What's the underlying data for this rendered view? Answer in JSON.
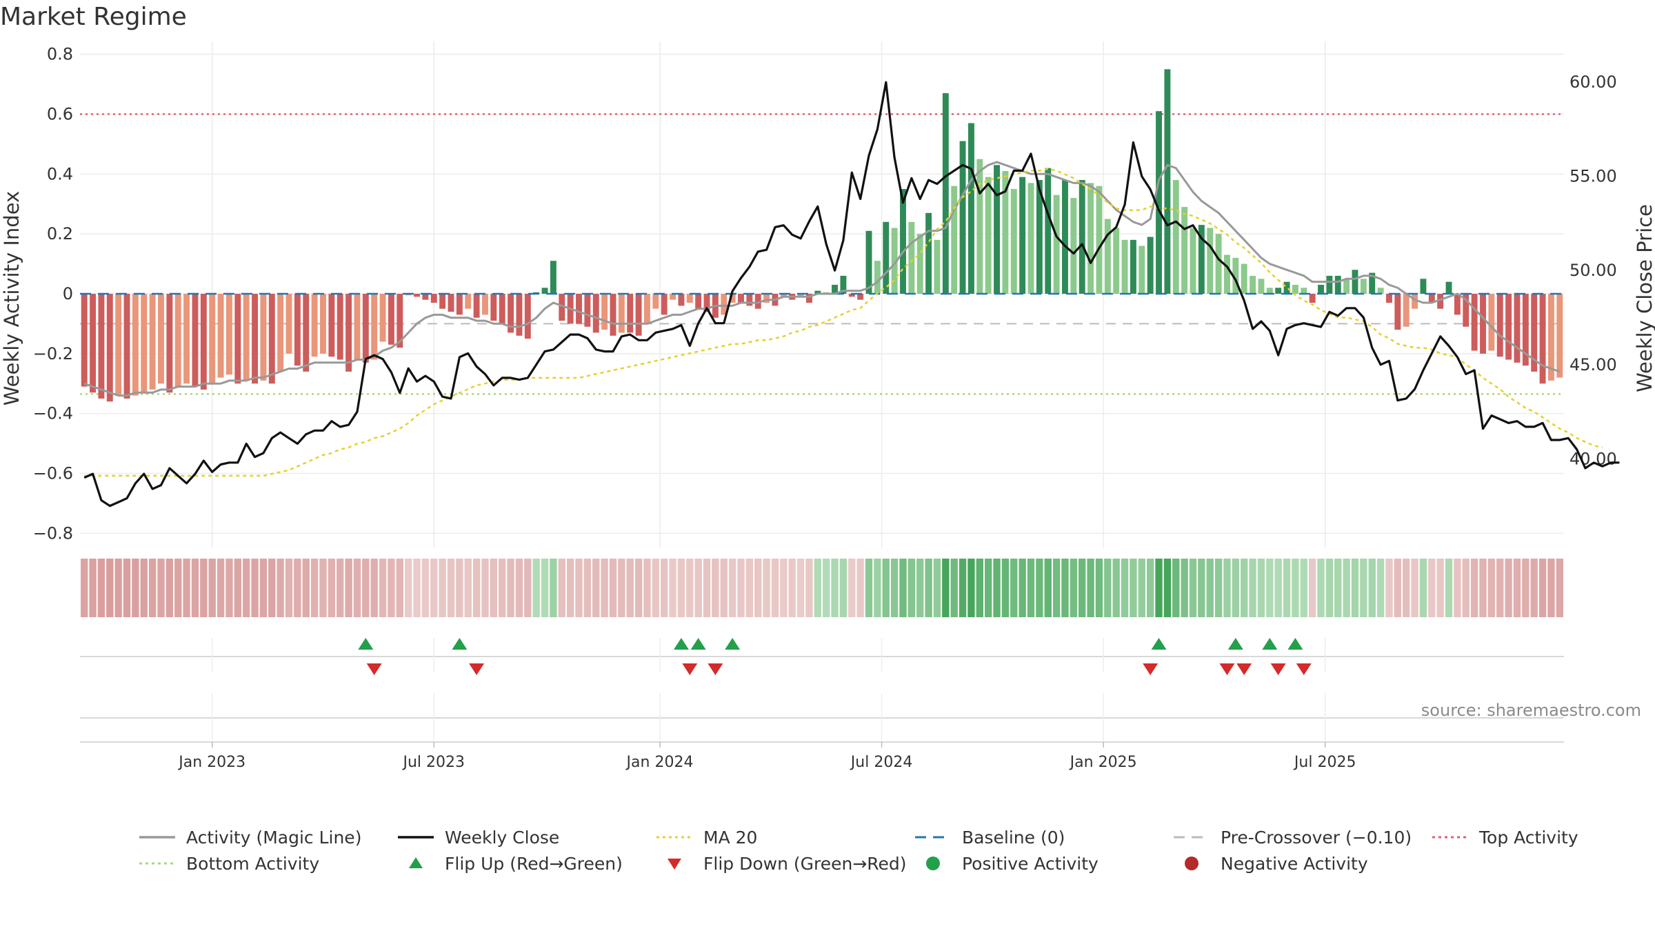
{
  "title": "Market Regime",
  "source": "source: sharemaestro.com",
  "colors": {
    "pos_dark": "#2e8b57",
    "pos_light": "#8cc98c",
    "neg_dark": "#cd5c5c",
    "neg_light": "#e9967a",
    "close": "#111111",
    "activity_line": "#999999",
    "ma20": "#e6d02c",
    "baseline": "#1f77b4",
    "precross": "#bbbbbb",
    "top": "#e06070",
    "bottom": "#a8d87a",
    "flip_up": "#22a04a",
    "flip_down": "#d42a2a"
  },
  "chart_data": {
    "type": "bar",
    "start_date": "2022-09-19",
    "interval_days": 7,
    "activity": [
      -0.31,
      -0.33,
      -0.35,
      -0.36,
      -0.34,
      -0.35,
      -0.34,
      -0.33,
      -0.32,
      -0.3,
      -0.33,
      -0.31,
      -0.3,
      -0.31,
      -0.32,
      -0.3,
      -0.28,
      -0.27,
      -0.3,
      -0.29,
      -0.3,
      -0.29,
      -0.3,
      -0.26,
      -0.2,
      -0.24,
      -0.26,
      -0.21,
      -0.2,
      -0.21,
      -0.22,
      -0.26,
      -0.22,
      -0.23,
      -0.22,
      -0.16,
      -0.17,
      -0.18,
      -0.005,
      -0.01,
      -0.02,
      -0.03,
      -0.05,
      -0.06,
      -0.07,
      -0.05,
      -0.08,
      -0.07,
      -0.09,
      -0.1,
      -0.13,
      -0.14,
      -0.15,
      0.005,
      0.02,
      0.11,
      -0.09,
      -0.1,
      -0.1,
      -0.11,
      -0.13,
      -0.12,
      -0.14,
      -0.13,
      -0.13,
      -0.14,
      -0.1,
      -0.05,
      -0.07,
      -0.02,
      -0.04,
      -0.03,
      -0.05,
      -0.06,
      -0.08,
      -0.07,
      -0.03,
      -0.03,
      -0.04,
      -0.05,
      -0.03,
      -0.04,
      -0.01,
      -0.02,
      -0.01,
      -0.03,
      0.01,
      0.005,
      0.03,
      0.06,
      -0.01,
      -0.02,
      0.21,
      0.11,
      0.24,
      0.22,
      0.35,
      0.24,
      0.2,
      0.27,
      0.18,
      0.67,
      0.36,
      0.51,
      0.57,
      0.45,
      0.39,
      0.43,
      0.41,
      0.35,
      0.39,
      0.37,
      0.38,
      0.42,
      0.33,
      0.38,
      0.32,
      0.38,
      0.37,
      0.36,
      0.25,
      0.22,
      0.18,
      0.18,
      0.16,
      0.19,
      0.61,
      0.75,
      0.38,
      0.29,
      0.22,
      0.23,
      0.22,
      0.2,
      0.13,
      0.12,
      0.1,
      0.06,
      0.05,
      0.02,
      0.02,
      0.04,
      0.03,
      0.02,
      -0.03,
      0.03,
      0.06,
      0.06,
      0.05,
      0.08,
      0.05,
      0.07,
      0.02,
      -0.03,
      -0.12,
      -0.11,
      -0.05,
      0.05,
      -0.03,
      -0.05,
      0.04,
      -0.07,
      -0.11,
      -0.19,
      -0.2,
      -0.19,
      -0.21,
      -0.22,
      -0.23,
      -0.24,
      -0.26,
      -0.3,
      -0.29,
      -0.28
    ],
    "activity_magic_line": [
      -0.3,
      -0.31,
      -0.32,
      -0.33,
      -0.34,
      -0.34,
      -0.33,
      -0.33,
      -0.33,
      -0.32,
      -0.32,
      -0.31,
      -0.31,
      -0.31,
      -0.3,
      -0.3,
      -0.3,
      -0.29,
      -0.29,
      -0.29,
      -0.28,
      -0.28,
      -0.27,
      -0.26,
      -0.25,
      -0.25,
      -0.24,
      -0.23,
      -0.23,
      -0.23,
      -0.23,
      -0.23,
      -0.22,
      -0.22,
      -0.21,
      -0.19,
      -0.18,
      -0.16,
      -0.13,
      -0.1,
      -0.08,
      -0.07,
      -0.07,
      -0.08,
      -0.08,
      -0.08,
      -0.09,
      -0.09,
      -0.1,
      -0.1,
      -0.11,
      -0.11,
      -0.1,
      -0.08,
      -0.05,
      -0.03,
      -0.04,
      -0.05,
      -0.06,
      -0.07,
      -0.08,
      -0.09,
      -0.1,
      -0.1,
      -0.1,
      -0.1,
      -0.1,
      -0.09,
      -0.08,
      -0.07,
      -0.07,
      -0.06,
      -0.05,
      -0.05,
      -0.04,
      -0.04,
      -0.04,
      -0.03,
      -0.03,
      -0.03,
      -0.02,
      -0.02,
      -0.01,
      -0.01,
      -0.01,
      -0.01,
      0.0,
      0.0,
      0.0,
      0.01,
      0.01,
      0.01,
      0.02,
      0.04,
      0.07,
      0.1,
      0.14,
      0.17,
      0.19,
      0.21,
      0.21,
      0.22,
      0.28,
      0.33,
      0.38,
      0.41,
      0.43,
      0.44,
      0.43,
      0.42,
      0.41,
      0.4,
      0.4,
      0.4,
      0.39,
      0.38,
      0.37,
      0.37,
      0.36,
      0.34,
      0.31,
      0.28,
      0.26,
      0.24,
      0.23,
      0.25,
      0.38,
      0.43,
      0.42,
      0.38,
      0.34,
      0.31,
      0.29,
      0.27,
      0.24,
      0.21,
      0.18,
      0.15,
      0.12,
      0.1,
      0.09,
      0.08,
      0.07,
      0.06,
      0.04,
      0.04,
      0.04,
      0.04,
      0.05,
      0.05,
      0.06,
      0.06,
      0.05,
      0.03,
      0.02,
      0.0,
      -0.02,
      -0.03,
      -0.03,
      -0.02,
      -0.01,
      0.0,
      -0.02,
      -0.05,
      -0.08,
      -0.11,
      -0.14,
      -0.16,
      -0.18,
      -0.2,
      -0.22,
      -0.24,
      -0.25,
      -0.26
    ],
    "weekly_close": [
      39.0,
      39.2,
      37.8,
      37.5,
      37.7,
      37.9,
      38.7,
      39.2,
      38.4,
      38.6,
      39.5,
      39.1,
      38.7,
      39.2,
      39.9,
      39.3,
      39.7,
      39.8,
      39.8,
      40.8,
      40.1,
      40.3,
      41.1,
      41.4,
      41.1,
      40.8,
      41.3,
      41.5,
      41.5,
      42.0,
      41.7,
      41.8,
      42.5,
      45.3,
      45.5,
      45.3,
      44.6,
      43.5,
      44.8,
      44.1,
      44.4,
      44.1,
      43.3,
      43.2,
      45.4,
      45.6,
      44.9,
      44.5,
      43.9,
      44.3,
      44.3,
      44.2,
      44.3,
      45.0,
      45.7,
      45.8,
      46.2,
      46.6,
      46.6,
      46.4,
      45.8,
      45.7,
      45.7,
      46.5,
      46.6,
      46.3,
      46.3,
      46.7,
      46.8,
      46.9,
      47.1,
      46.0,
      47.2,
      48.0,
      47.2,
      47.2,
      48.9,
      49.6,
      50.2,
      51.0,
      51.1,
      52.3,
      52.4,
      51.9,
      51.7,
      52.6,
      53.4,
      51.4,
      50.0,
      51.6,
      55.2,
      53.8,
      56.1,
      57.5,
      60.0,
      56.0,
      53.6,
      54.9,
      53.8,
      54.8,
      54.6,
      55.0,
      55.3,
      55.6,
      55.4,
      54.1,
      54.6,
      54.0,
      54.2,
      55.3,
      55.3,
      56.2,
      54.3,
      53.0,
      51.8,
      51.3,
      50.9,
      51.4,
      50.4,
      51.2,
      51.9,
      52.3,
      53.5,
      56.8,
      55.0,
      54.3,
      53.2,
      52.4,
      52.6,
      52.2,
      52.4,
      51.7,
      51.3,
      50.6,
      50.2,
      49.5,
      48.4,
      46.9,
      47.3,
      46.8,
      45.5,
      46.9,
      47.1,
      47.2,
      47.1,
      47.0,
      47.8,
      47.6,
      48.0,
      48.0,
      47.5,
      45.9,
      45.0,
      45.2,
      43.1,
      43.2,
      43.7,
      44.7,
      45.6,
      46.5,
      46.0,
      45.4,
      44.5,
      44.7,
      41.6,
      42.3,
      42.1,
      41.9,
      42.0,
      41.7,
      41.7,
      41.9,
      41.0,
      41.0,
      41.1,
      40.5,
      39.5,
      39.8,
      39.6,
      39.8,
      39.8
    ],
    "ma20": [
      39.1,
      39.1,
      39.1,
      39.1,
      39.1,
      39.1,
      39.1,
      39.1,
      39.1,
      39.1,
      39.1,
      39.1,
      39.1,
      39.1,
      39.1,
      39.1,
      39.1,
      39.1,
      39.1,
      39.1,
      39.1,
      39.1,
      39.2,
      39.3,
      39.4,
      39.6,
      39.8,
      40.0,
      40.2,
      40.3,
      40.5,
      40.6,
      40.8,
      40.9,
      41.1,
      41.2,
      41.4,
      41.6,
      41.9,
      42.3,
      42.6,
      42.9,
      43.1,
      43.3,
      43.5,
      43.7,
      43.9,
      44.0,
      44.1,
      44.2,
      44.2,
      44.2,
      44.3,
      44.3,
      44.3,
      44.3,
      44.3,
      44.3,
      44.3,
      44.4,
      44.5,
      44.6,
      44.7,
      44.8,
      44.9,
      45.0,
      45.1,
      45.2,
      45.3,
      45.4,
      45.5,
      45.6,
      45.7,
      45.8,
      45.9,
      46.0,
      46.1,
      46.1,
      46.2,
      46.3,
      46.3,
      46.4,
      46.5,
      46.7,
      46.8,
      47.0,
      47.1,
      47.3,
      47.5,
      47.7,
      47.9,
      48.0,
      48.4,
      48.8,
      49.1,
      49.5,
      50.1,
      50.5,
      50.9,
      51.5,
      52.2,
      52.6,
      53.3,
      53.9,
      54.2,
      54.6,
      54.8,
      54.9,
      55.0,
      55.1,
      55.2,
      55.3,
      55.3,
      55.4,
      55.3,
      55.1,
      54.9,
      54.6,
      54.3,
      54.0,
      53.6,
      53.3,
      53.2,
      53.2,
      53.2,
      53.4,
      53.3,
      53.3,
      53.2,
      53.0,
      52.9,
      52.7,
      52.5,
      52.2,
      51.9,
      51.5,
      51.2,
      50.8,
      50.4,
      49.9,
      49.5,
      49.1,
      48.7,
      48.4,
      48.2,
      47.9,
      47.7,
      47.5,
      47.5,
      47.4,
      47.3,
      47.0,
      46.6,
      46.4,
      46.1,
      46.0,
      45.9,
      45.9,
      45.8,
      45.6,
      45.5,
      45.4,
      45.0,
      44.7,
      44.3,
      44.0,
      43.7,
      43.3,
      43.0,
      42.7,
      42.5,
      42.2,
      41.9,
      41.6,
      41.4,
      41.1,
      40.9,
      40.7,
      40.6
    ],
    "flip_up_weeks": [
      33,
      44,
      70,
      72,
      76,
      126,
      135,
      139,
      142
    ],
    "flip_down_weeks": [
      34,
      46,
      71,
      74,
      125,
      134,
      136,
      140,
      143
    ],
    "baseline": 0,
    "pre_crossover": -0.1,
    "top_activity": 0.6,
    "bottom_activity": -0.335,
    "yleft": {
      "label": "Weekly Activity Index",
      "min": -0.85,
      "max": 0.82,
      "ticks": [
        0.8,
        0.6,
        0.4,
        0.2,
        0,
        -0.2,
        -0.4,
        -0.6,
        -0.8
      ],
      "tick_labels": [
        "0.8",
        "0.6",
        "0.4",
        "0.2",
        "0",
        "−0.2",
        "−0.4",
        "−0.6",
        "−0.8"
      ]
    },
    "yright": {
      "label": "Weekly Close Price",
      "min": 35.25,
      "max": 61.8,
      "ticks": [
        60,
        55,
        50,
        45,
        40
      ],
      "tick_labels": [
        "60.00",
        "55.00",
        "50.00",
        "45.00",
        "40.00"
      ]
    },
    "xticks": [
      {
        "label": "Jan 2023",
        "week": 15
      },
      {
        "label": "Jul 2023",
        "week": 41
      },
      {
        "label": "Jan 2024",
        "week": 67.5
      },
      {
        "label": "Jul 2024",
        "week": 93.5
      },
      {
        "label": "Jan 2025",
        "week": 119.5
      },
      {
        "label": "Jul 2025",
        "week": 145.5
      }
    ]
  },
  "legend": [
    {
      "label": "Activity (Magic Line)",
      "symbol": "line",
      "color": "#999999"
    },
    {
      "label": "Weekly Close",
      "symbol": "line",
      "color": "#111111"
    },
    {
      "label": "MA 20",
      "symbol": "dotted",
      "color": "#e6d02c"
    },
    {
      "label": "Baseline (0)",
      "symbol": "dashed",
      "color": "#1f77b4"
    },
    {
      "label": "Pre-Crossover (−0.10)",
      "symbol": "dashed",
      "color": "#bbbbbb"
    },
    {
      "label": "Top Activity",
      "symbol": "dotted",
      "color": "#e06070"
    },
    {
      "label": "Bottom Activity",
      "symbol": "dotted",
      "color": "#a8d87a"
    },
    {
      "label": "Flip Up (Red→Green)",
      "symbol": "tri-up",
      "color": "#22a04a"
    },
    {
      "label": "Flip Down (Green→Red)",
      "symbol": "tri-down",
      "color": "#d42a2a"
    },
    {
      "label": "Positive Activity",
      "symbol": "dot",
      "color": "#22a04a"
    },
    {
      "label": "Negative Activity",
      "symbol": "dot",
      "color": "#b52a2a"
    }
  ]
}
